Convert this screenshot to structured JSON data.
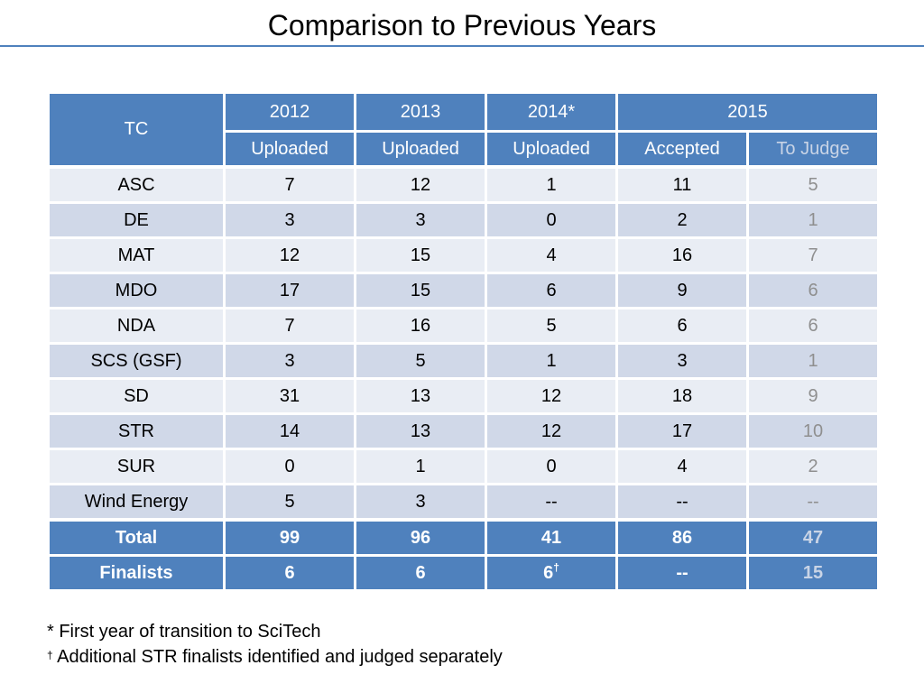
{
  "title": "Comparison to Previous Years",
  "table": {
    "tc_header": "TC",
    "years": [
      "2012",
      "2013",
      "2014*",
      "2015"
    ],
    "subheaders": [
      "Uploaded",
      "Uploaded",
      "Uploaded",
      "Accepted",
      "To Judge"
    ],
    "rows": [
      {
        "tc": "ASC",
        "v": [
          "7",
          "12",
          "1",
          "11",
          "5"
        ]
      },
      {
        "tc": "DE",
        "v": [
          "3",
          "3",
          "0",
          "2",
          "1"
        ]
      },
      {
        "tc": "MAT",
        "v": [
          "12",
          "15",
          "4",
          "16",
          "7"
        ]
      },
      {
        "tc": "MDO",
        "v": [
          "17",
          "15",
          "6",
          "9",
          "6"
        ]
      },
      {
        "tc": "NDA",
        "v": [
          "7",
          "16",
          "5",
          "6",
          "6"
        ]
      },
      {
        "tc": "SCS (GSF)",
        "v": [
          "3",
          "5",
          "1",
          "3",
          "1"
        ]
      },
      {
        "tc": "SD",
        "v": [
          "31",
          "13",
          "12",
          "18",
          "9"
        ]
      },
      {
        "tc": "STR",
        "v": [
          "14",
          "13",
          "12",
          "17",
          "10"
        ]
      },
      {
        "tc": "SUR",
        "v": [
          "0",
          "1",
          "0",
          "4",
          "2"
        ]
      },
      {
        "tc": "Wind Energy",
        "v": [
          "5",
          "3",
          "--",
          "--",
          "--"
        ]
      }
    ],
    "total": {
      "label": "Total",
      "v": [
        "99",
        "96",
        "41",
        "86",
        "47"
      ]
    },
    "finalists": {
      "label": "Finalists",
      "v": [
        "6",
        "6",
        "6",
        "--",
        "15"
      ],
      "dagger": "†"
    }
  },
  "notes": {
    "star_note": "* First year of transition to SciTech",
    "dagger_symbol": "†",
    "dagger_note": " Additional STR finalists identified and judged separately"
  },
  "colors": {
    "header_blue": "#4f81bd",
    "row_light": "#e9edf4",
    "row_dark": "#d0d8e8",
    "to_judge_text": "#8f8f8f"
  }
}
